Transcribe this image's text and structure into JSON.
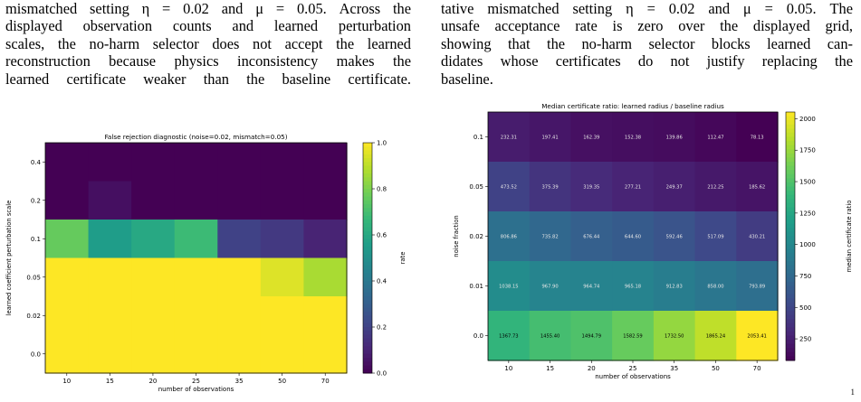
{
  "left_paragraph": {
    "lines": [
      "mismatched setting η = 0.02 and μ = 0.05. Across the",
      "displayed observation counts and learned perturbation",
      "scales, the no-harm selector does not accept the learned",
      "reconstruction because physics inconsistency makes the",
      "learned certificate weaker than the baseline certificate."
    ]
  },
  "right_paragraph": {
    "lines": [
      "tative mismatched setting η = 0.02 and μ = 0.05. The",
      "unsafe acceptance rate is zero over the displayed grid,",
      "showing that the no-harm selector blocks learned can-",
      "didates whose certificates do not justify replacing the",
      "baseline."
    ]
  },
  "chart_data": [
    {
      "type": "heatmap",
      "title": "False rejection diagnostic (noise=0.02, mismatch=0.05)",
      "xlabel": "number of observations",
      "ylabel": "learned coefficient perturbation scale",
      "x_categories": [
        "10",
        "15",
        "20",
        "25",
        "35",
        "50",
        "70"
      ],
      "y_categories": [
        "0.4",
        "0.2",
        "0.1",
        "0.05",
        "0.02",
        "0.0"
      ],
      "values": [
        [
          0.0,
          0.0,
          0.0,
          0.0,
          0.0,
          0.0,
          0.0
        ],
        [
          0.0,
          0.04,
          0.0,
          0.0,
          0.0,
          0.0,
          0.0
        ],
        [
          0.76,
          0.55,
          0.6,
          0.68,
          0.2,
          0.17,
          0.1
        ],
        [
          1.0,
          1.0,
          1.0,
          1.0,
          1.0,
          0.95,
          0.87
        ],
        [
          1.0,
          1.0,
          1.0,
          1.0,
          1.0,
          1.0,
          1.0
        ],
        [
          1.0,
          1.0,
          1.0,
          1.0,
          1.0,
          1.0,
          1.0
        ]
      ],
      "colorbar": {
        "label": "rate",
        "min": 0.0,
        "max": 1.0,
        "ticks": [
          "0.0",
          "0.2",
          "0.4",
          "0.6",
          "0.8",
          "1.0"
        ]
      },
      "colormap": "viridis",
      "show_cell_labels": false
    },
    {
      "type": "heatmap",
      "title": "Median certificate ratio: learned radius / baseline radius",
      "xlabel": "number of observations",
      "ylabel": "noise fraction",
      "x_categories": [
        "10",
        "15",
        "20",
        "25",
        "35",
        "50",
        "70"
      ],
      "y_categories": [
        "0.1",
        "0.05",
        "0.02",
        "0.01",
        "0.0"
      ],
      "values": [
        [
          232.31,
          197.41,
          162.39,
          152.38,
          139.86,
          112.47,
          78.13
        ],
        [
          473.52,
          375.39,
          319.35,
          277.21,
          249.37,
          212.25,
          185.62
        ],
        [
          806.86,
          735.82,
          676.44,
          644.6,
          592.46,
          517.09,
          430.21
        ],
        [
          1038.15,
          967.9,
          964.74,
          965.18,
          912.83,
          858.0,
          793.89
        ],
        [
          1367.73,
          1455.4,
          1494.79,
          1582.59,
          1732.5,
          1865.24,
          2053.41
        ]
      ],
      "cell_labels": [
        [
          "232.31",
          "197.41",
          "162.39",
          "152.38",
          "139.86",
          "112.47",
          "78.13"
        ],
        [
          "473.52",
          "375.39",
          "319.35",
          "277.21",
          "249.37",
          "212.25",
          "185.62"
        ],
        [
          "806.86",
          "735.82",
          "676.44",
          "644.60",
          "592.46",
          "517.09",
          "430.21"
        ],
        [
          "1038.15",
          "967.90",
          "964.74",
          "965.18",
          "912.83",
          "858.00",
          "793.89"
        ],
        [
          "1367.73",
          "1455.40",
          "1494.79",
          "1582.59",
          "1732.50",
          "1865.24",
          "2053.41"
        ]
      ],
      "colorbar": {
        "label": "median certificate ratio",
        "min": 78.13,
        "max": 2053.41,
        "ticks": [
          "250",
          "500",
          "750",
          "1000",
          "1250",
          "1500",
          "1750",
          "2000"
        ]
      },
      "colormap": "viridis",
      "show_cell_labels": true
    }
  ],
  "footnote_mark": "1"
}
